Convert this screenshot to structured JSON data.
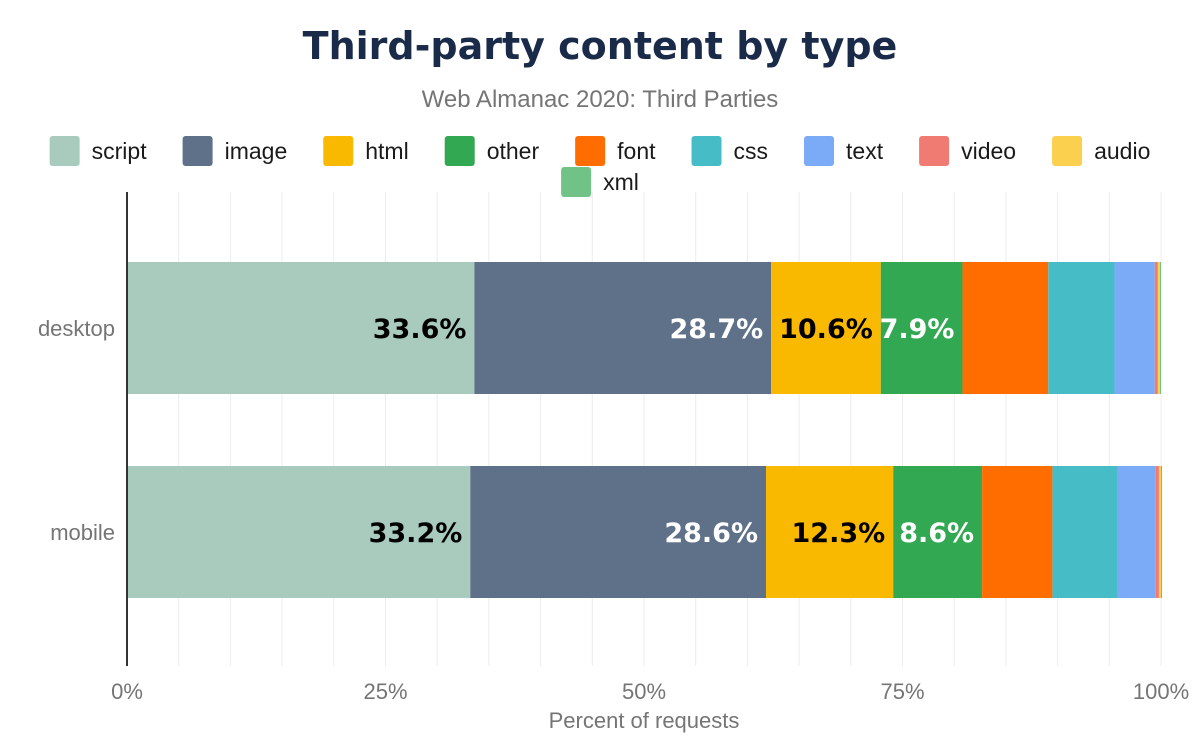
{
  "chart_data": {
    "type": "bar",
    "orientation": "horizontal",
    "stacked": true,
    "title": "Third-party content by type",
    "subtitle": "Web Almanac 2020: Third Parties",
    "xlabel": "Percent of requests",
    "ylabel": "",
    "xlim": [
      0,
      100
    ],
    "x_ticks": [
      "0%",
      "25%",
      "50%",
      "75%",
      "100%"
    ],
    "grid": true,
    "legend_position": "top",
    "categories": [
      "desktop",
      "mobile"
    ],
    "series": [
      {
        "name": "script",
        "color": "#a8cbbd",
        "values": [
          33.6,
          33.2
        ],
        "labels": [
          "33.6%",
          "33.2%"
        ],
        "label_color": "#000000"
      },
      {
        "name": "image",
        "color": "#5f7089",
        "values": [
          28.7,
          28.6
        ],
        "labels": [
          "28.7%",
          "28.6%"
        ],
        "label_color": "#ffffff"
      },
      {
        "name": "html",
        "color": "#f9b900",
        "values": [
          10.6,
          12.3
        ],
        "labels": [
          "10.6%",
          "12.3%"
        ],
        "label_color": "#000000"
      },
      {
        "name": "other",
        "color": "#33a853",
        "values": [
          7.9,
          8.6
        ],
        "labels": [
          "7.9%",
          "8.6%"
        ],
        "label_color": "#ffffff"
      },
      {
        "name": "font",
        "color": "#ff6d00",
        "values": [
          8.3,
          6.8
        ],
        "labels": [
          "",
          ""
        ],
        "label_color": "#ffffff"
      },
      {
        "name": "css",
        "color": "#46bdc6",
        "values": [
          6.4,
          6.3
        ],
        "labels": [
          "",
          ""
        ],
        "label_color": "#000000"
      },
      {
        "name": "text",
        "color": "#7baaf7",
        "values": [
          3.9,
          3.7
        ],
        "labels": [
          "",
          ""
        ],
        "label_color": "#000000"
      },
      {
        "name": "video",
        "color": "#f07b72",
        "values": [
          0.3,
          0.3
        ],
        "labels": [
          "",
          ""
        ],
        "label_color": "#000000"
      },
      {
        "name": "audio",
        "color": "#fcd04f",
        "values": [
          0.2,
          0.2
        ],
        "labels": [
          "",
          ""
        ],
        "label_color": "#000000"
      },
      {
        "name": "xml",
        "color": "#71c287",
        "values": [
          0.1,
          0.1
        ],
        "labels": [
          "",
          ""
        ],
        "label_color": "#000000"
      }
    ]
  }
}
